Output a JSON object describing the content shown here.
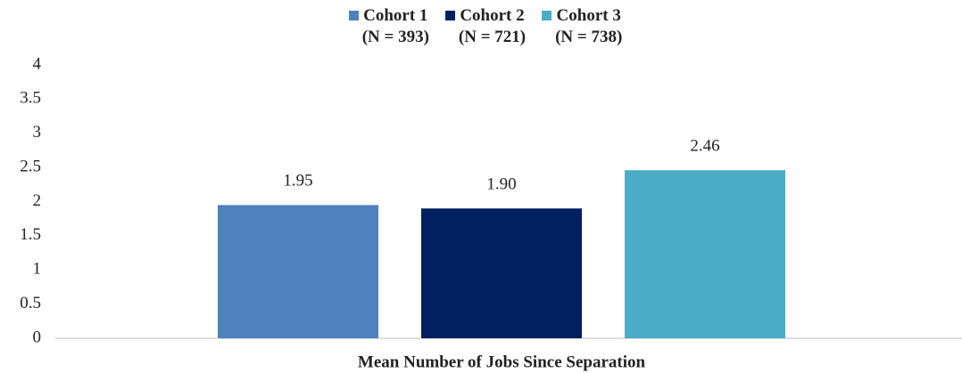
{
  "chart_data": {
    "type": "bar",
    "categories": [
      "Mean Number of Jobs Since Separation"
    ],
    "series": [
      {
        "name": "Cohort 1\n(N = 393)",
        "color": "#4f81bd",
        "values": [
          1.95
        ],
        "value_labels": [
          "1.95"
        ]
      },
      {
        "name": "Cohort 2\n(N = 721)",
        "color": "#002060",
        "values": [
          1.9
        ],
        "value_labels": [
          "1.90"
        ]
      },
      {
        "name": "Cohort 3\n(N = 738)",
        "color": "#4bacc6",
        "values": [
          2.46
        ],
        "value_labels": [
          "2.46"
        ]
      }
    ],
    "ylim": [
      0,
      4
    ],
    "yticks": [
      0,
      0.5,
      1,
      1.5,
      2,
      2.5,
      3,
      3.5,
      4
    ],
    "grid": false,
    "legend": "top"
  }
}
